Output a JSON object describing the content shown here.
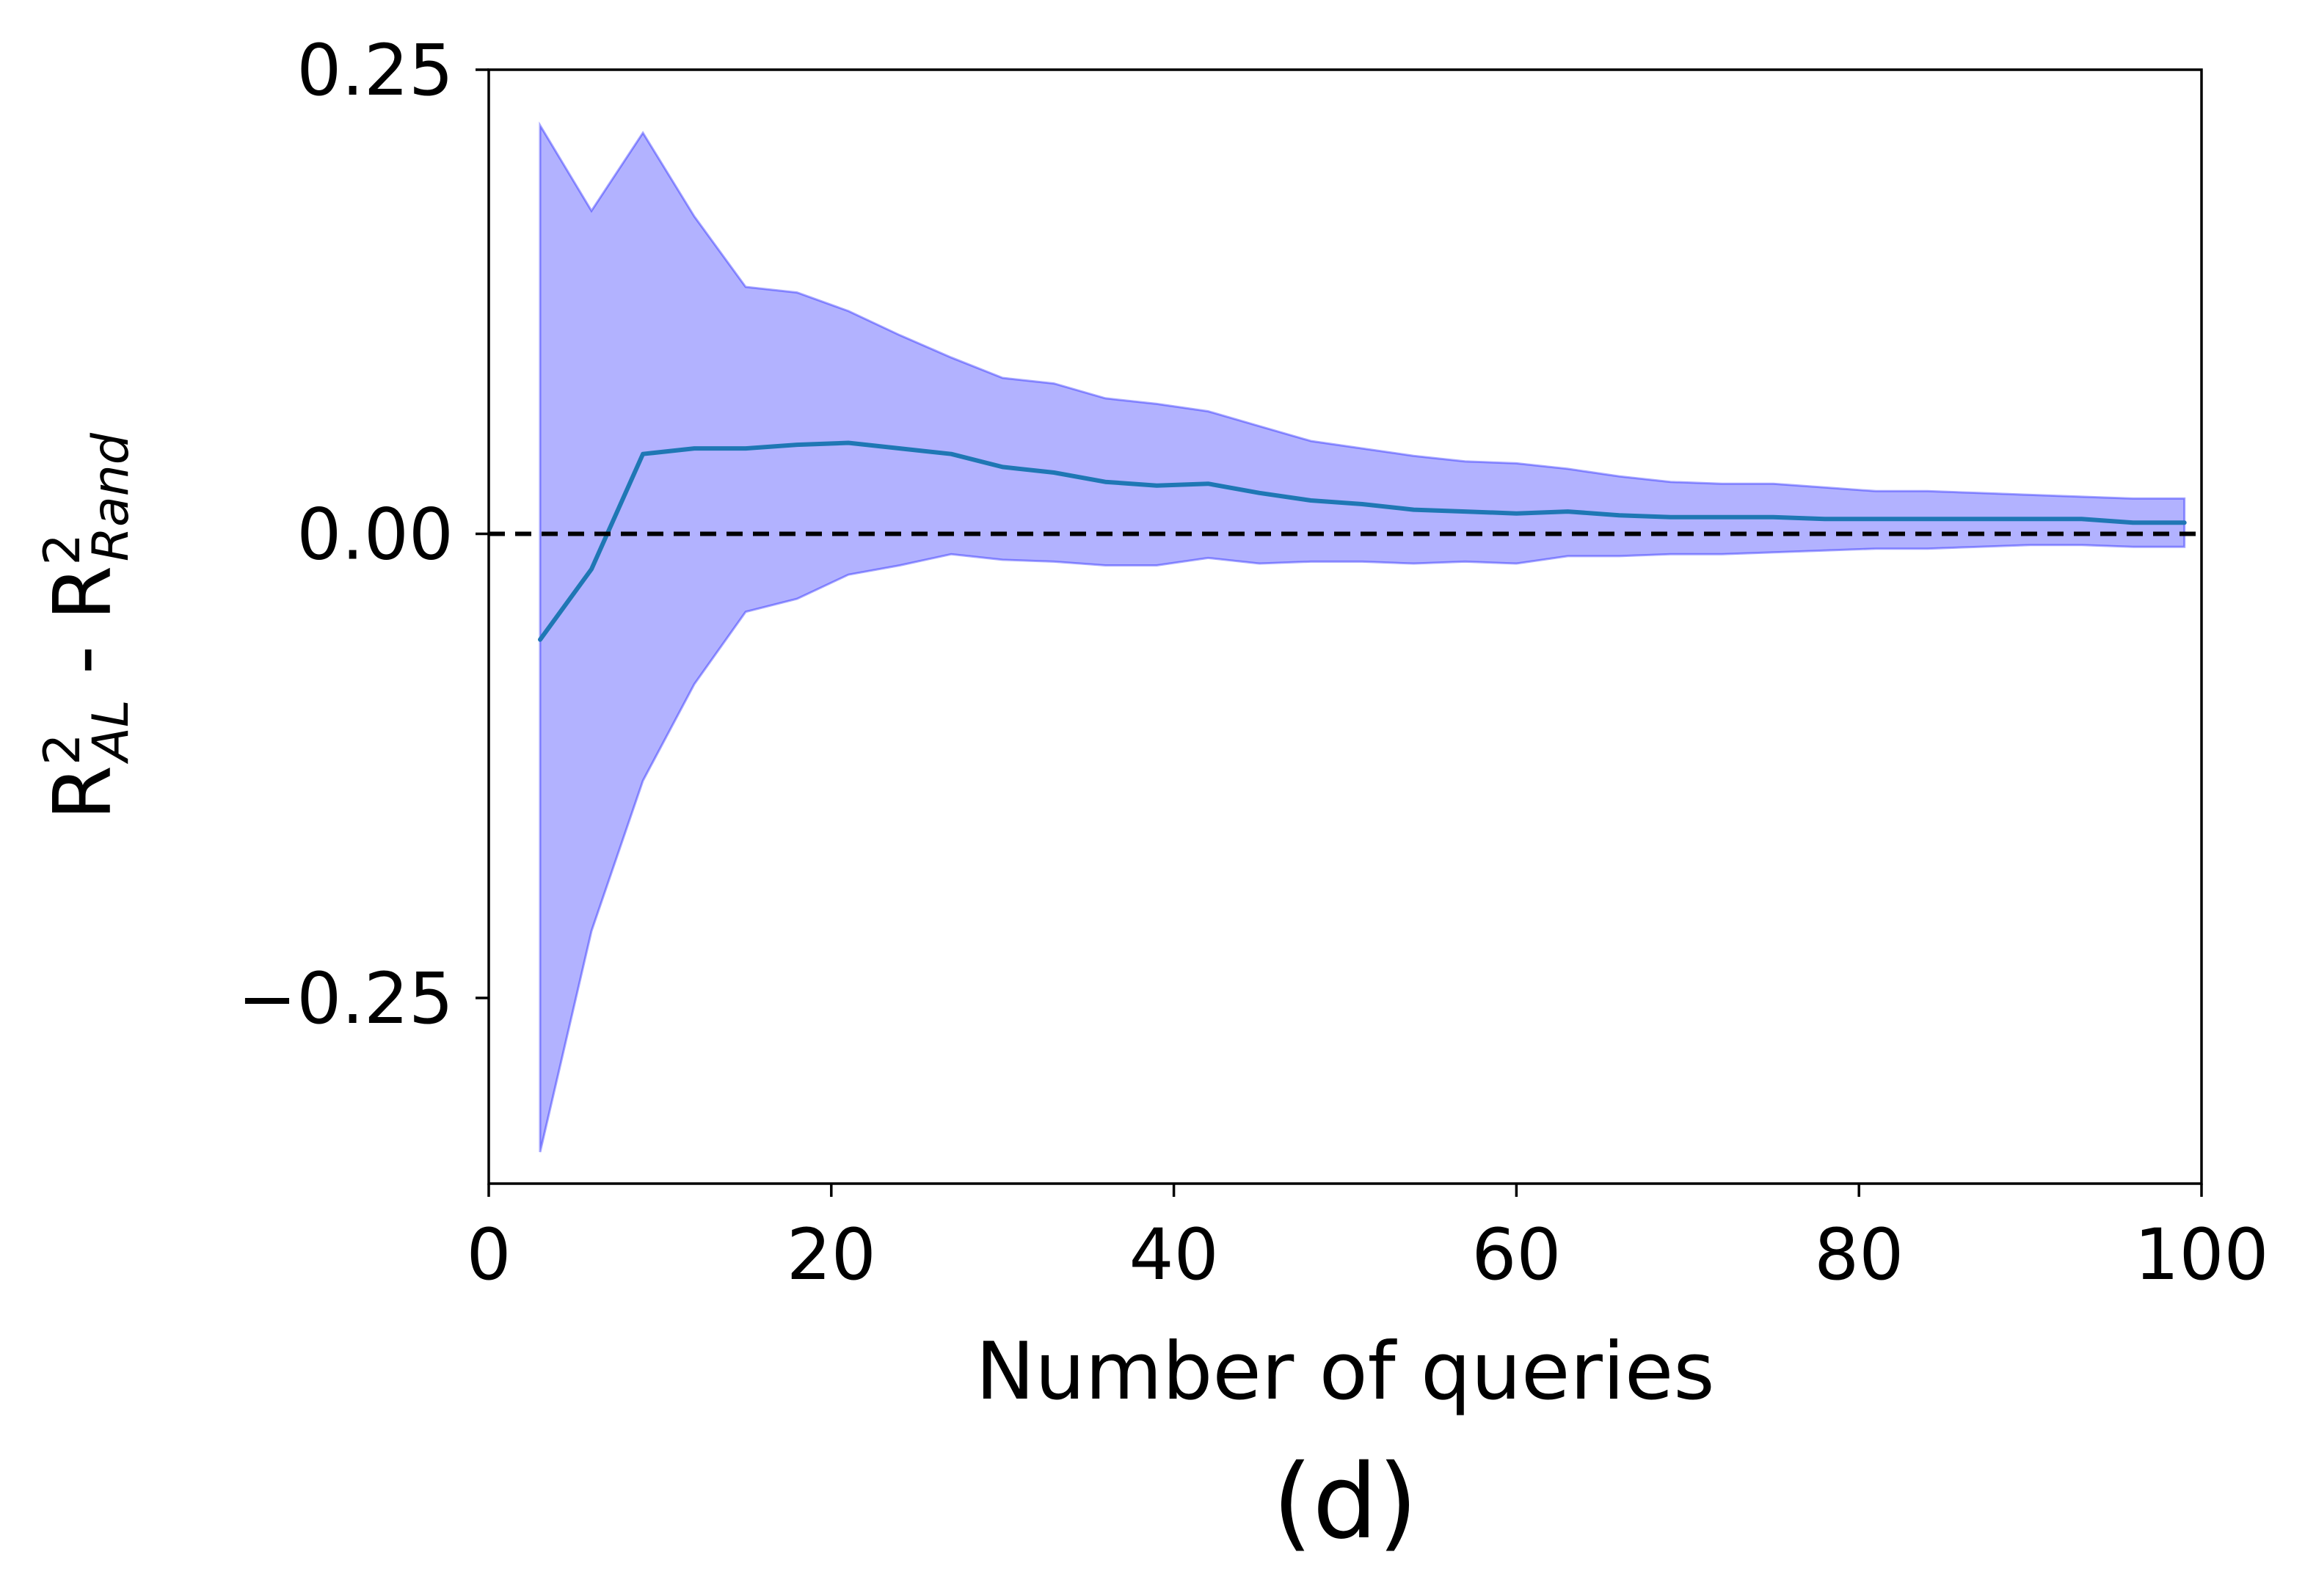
{
  "chart_data": {
    "type": "line",
    "panel_label": "(d)",
    "xlabel": "Number of queries",
    "ylabel": {
      "al_base": "R",
      "al_sup": "2",
      "al_sub": "AL",
      "separator": " - ",
      "rand_base": "R",
      "rand_sup": "2",
      "rand_sub": "Rand"
    },
    "xlim": [
      0,
      100
    ],
    "ylim": [
      -0.35,
      0.25
    ],
    "xticks": [
      0,
      20,
      40,
      60,
      80,
      100
    ],
    "xtick_labels": [
      "0",
      "20",
      "40",
      "60",
      "80",
      "100"
    ],
    "yticks": [
      -0.25,
      0.0,
      0.25
    ],
    "ytick_labels": [
      "−0.25",
      "0.00",
      "0.25"
    ],
    "grid": false,
    "reference_line": {
      "y": 0.0,
      "style": "dashed",
      "color": "#000000"
    },
    "series": [
      {
        "line_color": "#1f77b4",
        "band_color": "#0000ff",
        "band_opacity": 0.3,
        "x": [
          3,
          6,
          9,
          12,
          15,
          18,
          21,
          24,
          27,
          30,
          33,
          36,
          39,
          42,
          45,
          48,
          51,
          54,
          57,
          60,
          63,
          66,
          69,
          72,
          75,
          78,
          81,
          84,
          87,
          90,
          93,
          96,
          99
        ],
        "mean": [
          -0.057,
          -0.019,
          0.043,
          0.046,
          0.046,
          0.048,
          0.049,
          0.046,
          0.043,
          0.036,
          0.033,
          0.028,
          0.026,
          0.027,
          0.022,
          0.018,
          0.016,
          0.013,
          0.012,
          0.011,
          0.012,
          0.01,
          0.009,
          0.009,
          0.009,
          0.008,
          0.008,
          0.008,
          0.008,
          0.008,
          0.008,
          0.006,
          0.006
        ],
        "upper": [
          0.22,
          0.174,
          0.216,
          0.171,
          0.133,
          0.13,
          0.12,
          0.107,
          0.095,
          0.084,
          0.081,
          0.073,
          0.07,
          0.066,
          0.058,
          0.05,
          0.046,
          0.042,
          0.039,
          0.038,
          0.035,
          0.031,
          0.028,
          0.027,
          0.027,
          0.025,
          0.023,
          0.023,
          0.022,
          0.021,
          0.02,
          0.019,
          0.019
        ],
        "lower": [
          -0.333,
          -0.214,
          -0.133,
          -0.081,
          -0.042,
          -0.035,
          -0.022,
          -0.017,
          -0.011,
          -0.014,
          -0.015,
          -0.017,
          -0.017,
          -0.013,
          -0.016,
          -0.015,
          -0.015,
          -0.016,
          -0.015,
          -0.016,
          -0.012,
          -0.012,
          -0.011,
          -0.011,
          -0.01,
          -0.009,
          -0.008,
          -0.008,
          -0.007,
          -0.006,
          -0.006,
          -0.007,
          -0.007
        ]
      }
    ]
  }
}
